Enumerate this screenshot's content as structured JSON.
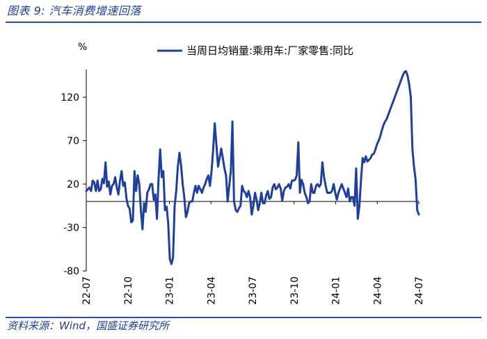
{
  "figure": {
    "title": "图表 9:  汽车消费增速回落",
    "source": "资料来源：Wind，国盛证券研究所"
  },
  "chart_data": {
    "type": "line",
    "title": "",
    "ylabel": "%",
    "xlabel": "",
    "ylim": [
      -80,
      155
    ],
    "yticks": [
      -80,
      -30,
      20,
      70,
      120
    ],
    "grid": false,
    "legend_position": "top",
    "x_tick_labels": [
      "22-07",
      "22-10",
      "23-01",
      "23-04",
      "23-07",
      "23-10",
      "24-01",
      "24-04",
      "24-07"
    ],
    "x_tick_index": [
      0,
      13,
      26,
      39,
      52,
      65,
      78,
      91,
      104
    ],
    "series": [
      {
        "name": "当周日均销量:乘用车:厂家零售:同比",
        "color": "#1f3f9f",
        "values": [
          12,
          14,
          16,
          12,
          24,
          22,
          12,
          24,
          12,
          14,
          26,
          21,
          45,
          17,
          23,
          8,
          18,
          20,
          28,
          16,
          8,
          24,
          35,
          18,
          22,
          4,
          -5,
          -8,
          -24,
          -22,
          35,
          12,
          30,
          20,
          -10,
          -32,
          -2,
          -12,
          10,
          14,
          20,
          20,
          2,
          8,
          -20,
          26,
          60,
          28,
          35,
          -10,
          -6,
          -25,
          -66,
          -72,
          -65,
          -5,
          12,
          40,
          56,
          42,
          20,
          5,
          -18,
          -12,
          -2,
          0,
          0,
          10,
          18,
          10,
          18,
          14,
          10,
          16,
          20,
          26,
          30,
          18,
          35,
          60,
          90,
          66,
          40,
          50,
          61,
          50,
          38,
          30,
          0,
          18,
          35,
          92,
          0,
          -10,
          -12,
          -8,
          -5,
          18,
          12,
          10,
          5,
          12,
          5,
          -15,
          -5,
          10,
          2,
          -10,
          -2,
          10,
          -2,
          -2,
          7,
          12,
          3,
          5,
          16,
          20,
          14,
          16,
          20,
          15,
          1,
          12,
          16,
          17,
          20,
          15,
          24,
          24,
          25,
          30,
          68,
          10,
          25,
          20,
          10,
          5,
          -2,
          0,
          20,
          10,
          10,
          18,
          20,
          17,
          20,
          45,
          28,
          18,
          10,
          10,
          10,
          12,
          20,
          10,
          2,
          10,
          15,
          20,
          15,
          10,
          5,
          15,
          0,
          5,
          5,
          -5,
          38,
          -20,
          -5,
          25,
          50,
          45,
          52,
          46,
          48,
          50,
          54,
          55,
          60,
          66,
          70,
          75,
          82,
          88,
          92,
          95,
          100,
          105,
          110,
          115,
          120,
          125,
          130,
          135,
          140,
          145,
          149,
          150,
          145,
          135,
          120,
          60,
          40,
          25,
          -10,
          -15
        ]
      }
    ]
  }
}
